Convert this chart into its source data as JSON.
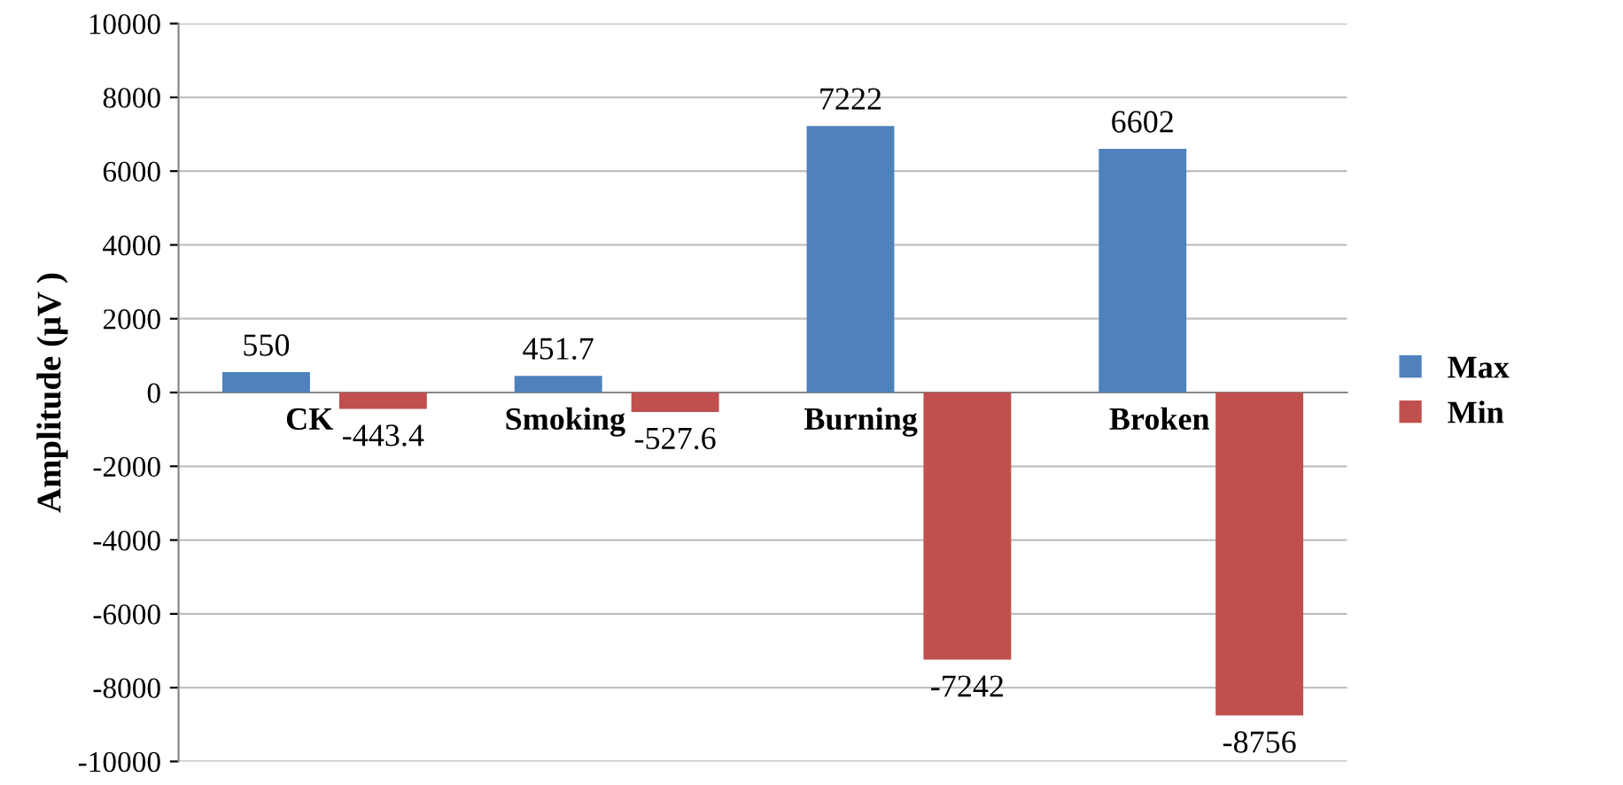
{
  "chart_data": {
    "type": "bar",
    "ylabel": "Amplitude (μV )",
    "categories": [
      "CK",
      "Smoking",
      "Burning",
      "Broken"
    ],
    "series": [
      {
        "name": "Max",
        "color": "#4f81bd",
        "values": [
          550,
          451.7,
          7222,
          6602
        ]
      },
      {
        "name": "Min",
        "color": "#c0504d",
        "values": [
          -443.4,
          -527.6,
          -7242,
          -8756
        ]
      }
    ],
    "ylim": [
      -10000,
      10000
    ],
    "yticks": [
      -10000,
      -8000,
      -6000,
      -4000,
      -2000,
      0,
      2000,
      4000,
      6000,
      8000,
      10000
    ],
    "grid": "y",
    "legend": "right",
    "data_labels": true
  }
}
